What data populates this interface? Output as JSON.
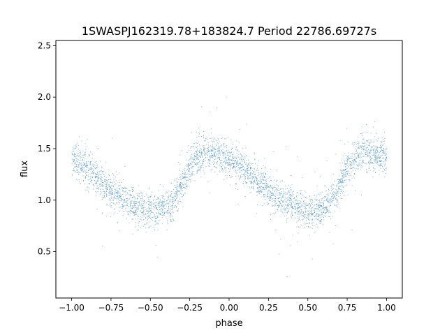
{
  "chart_data": {
    "type": "scatter",
    "title": "1SWASPJ162319.78+183824.7 Period 22786.69727s",
    "xlabel": "phase",
    "ylabel": "flux",
    "xlim": [
      -1.1,
      1.1
    ],
    "ylim": [
      0.05,
      2.55
    ],
    "x_ticks": [
      -1.0,
      -0.75,
      -0.5,
      -0.25,
      0.0,
      0.25,
      0.5,
      0.75,
      1.0
    ],
    "x_tick_labels": [
      "−1.00",
      "−0.75",
      "−0.50",
      "−0.25",
      "0.00",
      "0.25",
      "0.50",
      "0.75",
      "1.00"
    ],
    "y_ticks": [
      0.5,
      1.0,
      1.5,
      2.0,
      2.5
    ],
    "y_tick_labels": [
      "0.5",
      "1.0",
      "1.5",
      "2.0",
      "2.5"
    ],
    "grid": false,
    "point_color": "#1f77b4",
    "phased_light_curve": {
      "phase": [
        0.0,
        0.05,
        0.1,
        0.15,
        0.2,
        0.25,
        0.3,
        0.35,
        0.4,
        0.45,
        0.5,
        0.55,
        0.6,
        0.65,
        0.7,
        0.75,
        0.8,
        0.85,
        0.9,
        0.95,
        1.0
      ],
      "mean_flux": [
        1.4,
        1.35,
        1.29,
        1.22,
        1.15,
        1.09,
        1.04,
        0.99,
        0.95,
        0.92,
        0.9,
        0.9,
        0.93,
        1.0,
        1.13,
        1.33,
        1.43,
        1.45,
        1.45,
        1.43,
        1.4
      ],
      "scatter": 0.08,
      "points_per_panel": 3800
    },
    "note_points": "phase spans -1 to 1 (two cycles); dense scatter of small points around the mean curve"
  }
}
